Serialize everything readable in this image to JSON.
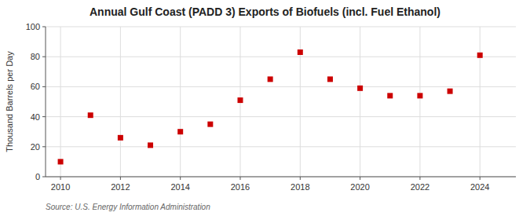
{
  "chart_data": {
    "type": "scatter",
    "title": "Annual Gulf Coast (PADD 3) Exports of Biofuels (incl. Fuel Ethanol)",
    "y_label": "Thousand Barrels per Day",
    "annotations": [
      "Source: U.S. Energy Information Administration"
    ],
    "x": [
      2010,
      2011,
      2012,
      2013,
      2014,
      2015,
      2016,
      2017,
      2018,
      2019,
      2020,
      2021,
      2022,
      2023,
      2024
    ],
    "values": [
      10,
      41,
      26,
      21,
      30,
      35,
      51,
      65,
      83,
      65,
      59,
      54,
      54,
      57,
      81
    ],
    "color": "#cc0000",
    "marker": "square",
    "xlim": [
      2009.5,
      2025.2
    ],
    "ylim": [
      0,
      100
    ],
    "xticks": [
      2010,
      2012,
      2014,
      2016,
      2018,
      2020,
      2022,
      2024
    ],
    "yticks": [
      0,
      20,
      40,
      60,
      80,
      100
    ],
    "grid": true
  }
}
